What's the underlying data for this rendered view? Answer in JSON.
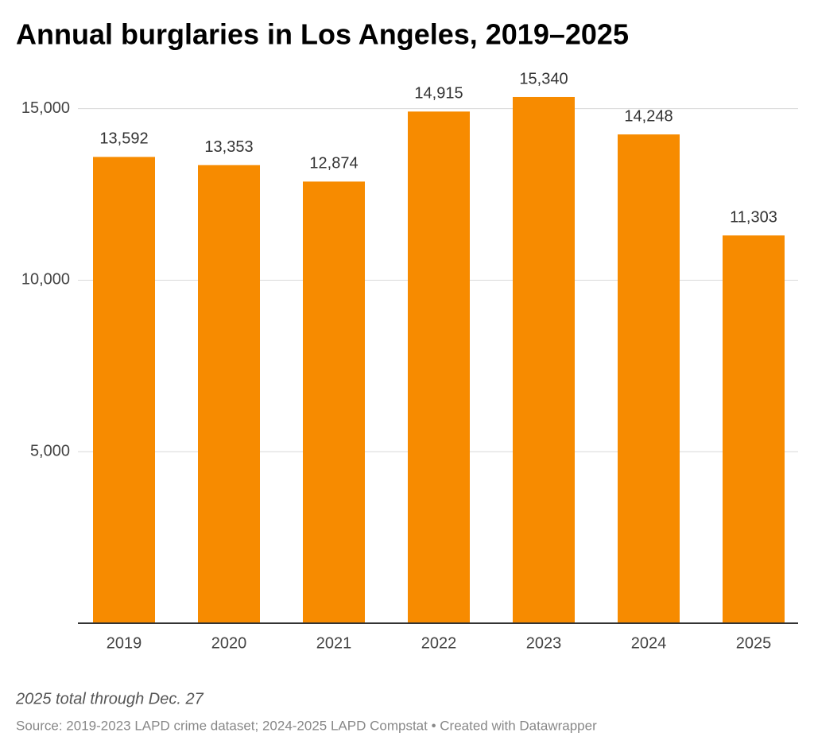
{
  "chart_data": {
    "type": "bar",
    "title": "Annual burglaries in Los Angeles, 2019–2025",
    "categories": [
      "2019",
      "2020",
      "2021",
      "2022",
      "2023",
      "2024",
      "2025"
    ],
    "values": [
      13592,
      13353,
      12874,
      14915,
      15340,
      14248,
      11303
    ],
    "value_labels": [
      "13,592",
      "13,353",
      "12,874",
      "14,915",
      "15,340",
      "14,248",
      "11,303"
    ],
    "color": "#f78b00",
    "ylim": [
      0,
      16000
    ],
    "yticks": [
      {
        "value": 5000,
        "label": "5,000"
      },
      {
        "value": 10000,
        "label": "10,000"
      },
      {
        "value": 15000,
        "label": "15,000"
      }
    ],
    "grid": true,
    "note": "2025 total through Dec. 27",
    "source": "Source: 2019-2023 LAPD crime dataset; 2024-2025 LAPD Compstat • Created with Datawrapper"
  }
}
